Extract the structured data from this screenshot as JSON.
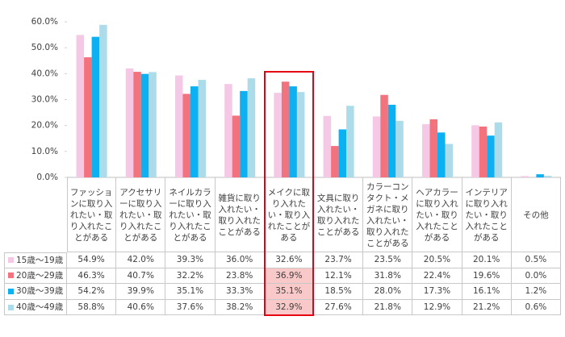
{
  "chart_data": {
    "type": "bar",
    "categories": [
      "ファッションに取り入れたい・取り入れたことがある",
      "アクセサリーに取り入れたい・取り入れたことがある",
      "ネイルカラーに取り入れたい・取り入れたことがある",
      "雑貨に取り入れたい・取り入れたことがある",
      "メイクに取り入れたい・取り入れたことがある",
      "文具に取り入れたい・取り入れたことがある",
      "カラーコンタクト・メガネに取り入れたい・取り入れたことがある",
      "ヘアカラーに取り入れたい・取り入れたことがある",
      "インテリアに取り入れたい・取り入れたことがある",
      "その他"
    ],
    "series": [
      {
        "name": "15歳～19歳",
        "color": "#f5c8e6",
        "values": [
          54.9,
          42.0,
          39.3,
          36.0,
          32.6,
          23.7,
          23.5,
          20.5,
          20.1,
          0.5
        ],
        "value_labels": [
          "54.9%",
          "42.0%",
          "39.3%",
          "36.0%",
          "32.6%",
          "23.7%",
          "23.5%",
          "20.5%",
          "20.1%",
          "0.5%"
        ]
      },
      {
        "name": "20歳～29歳",
        "color": "#f2727e",
        "values": [
          46.3,
          40.7,
          32.2,
          23.8,
          36.9,
          12.1,
          31.8,
          22.4,
          19.6,
          0.0
        ],
        "value_labels": [
          "46.3%",
          "40.7%",
          "32.2%",
          "23.8%",
          "36.9%",
          "12.1%",
          "31.8%",
          "22.4%",
          "19.6%",
          "0.0%"
        ]
      },
      {
        "name": "30歳～39歳",
        "color": "#0db0f0",
        "values": [
          54.2,
          39.9,
          35.1,
          33.3,
          35.1,
          18.5,
          28.0,
          17.3,
          16.1,
          1.2
        ],
        "value_labels": [
          "54.2%",
          "39.9%",
          "35.1%",
          "33.3%",
          "35.1%",
          "18.5%",
          "28.0%",
          "17.3%",
          "16.1%",
          "1.2%"
        ]
      },
      {
        "name": "40歳～49歳",
        "color": "#acdce9",
        "values": [
          58.8,
          40.6,
          37.6,
          38.2,
          32.9,
          27.6,
          21.8,
          12.9,
          21.2,
          0.6
        ],
        "value_labels": [
          "58.8%",
          "40.6%",
          "37.6%",
          "38.2%",
          "32.9%",
          "27.6%",
          "21.8%",
          "12.9%",
          "21.2%",
          "0.6%"
        ]
      }
    ],
    "ylim": [
      0,
      60
    ],
    "yticks": [
      {
        "value": 0,
        "label": "0.0%"
      },
      {
        "value": 10,
        "label": "10.0%"
      },
      {
        "value": 20,
        "label": "20.0%"
      },
      {
        "value": 30,
        "label": "30.0%"
      },
      {
        "value": 40,
        "label": "40.0%"
      },
      {
        "value": 50,
        "label": "50.0%"
      },
      {
        "value": 60,
        "label": "60.0%"
      }
    ],
    "grid": false
  }
}
